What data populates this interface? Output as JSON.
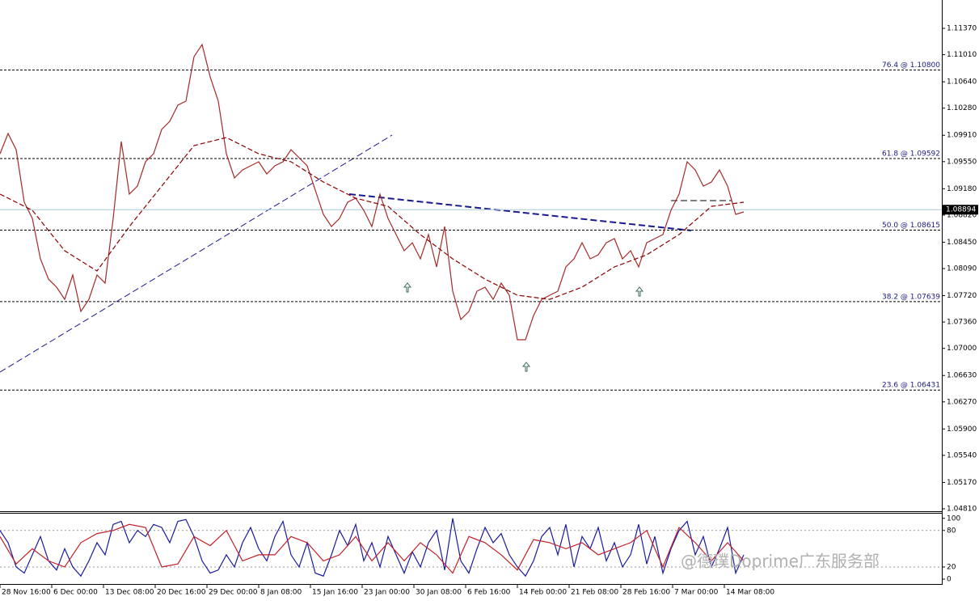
{
  "chart_data": [
    {
      "type": "line",
      "xlim": [
        0,
        116.5
      ],
      "xticks": [
        {
          "value": 0,
          "label": "28 Nov 16:00"
        },
        {
          "value": 6.4,
          "label": "6 Dec 00:00"
        },
        {
          "value": 12.8,
          "label": "13 Dec 08:00"
        },
        {
          "value": 19.2,
          "label": "20 Dec 16:00"
        },
        {
          "value": 25.6,
          "label": "29 Dec 00:00"
        },
        {
          "value": 32,
          "label": "8 Jan 08:00"
        },
        {
          "value": 38.4,
          "label": "15 Jan 16:00"
        },
        {
          "value": 44.8,
          "label": "23 Jan 00:00"
        },
        {
          "value": 51.2,
          "label": "30 Jan 08:00"
        },
        {
          "value": 57.6,
          "label": "6 Feb 16:00"
        },
        {
          "value": 64,
          "label": "14 Feb 00:00"
        },
        {
          "value": 70.4,
          "label": "21 Feb 08:00"
        },
        {
          "value": 76.8,
          "label": "28 Feb 16:00"
        },
        {
          "value": 83.2,
          "label": "7 Mar 00:00"
        },
        {
          "value": 89.6,
          "label": "14 Mar 08:00"
        }
      ],
      "ylim": [
        1.04777,
        1.11757
      ],
      "yticks": [
        {
          "value": 1.1137,
          "label": "1.11370"
        },
        {
          "value": 1.1101,
          "label": "1.11010"
        },
        {
          "value": 1.1064,
          "label": "1.10640"
        },
        {
          "value": 1.1028,
          "label": "1.10280"
        },
        {
          "value": 1.0991,
          "label": "1.09910"
        },
        {
          "value": 1.0955,
          "label": "1.09550"
        },
        {
          "value": 1.0918,
          "label": "1.09180"
        },
        {
          "value": 1.0882,
          "label": "1.08820"
        },
        {
          "value": 1.0845,
          "label": "1.08450"
        },
        {
          "value": 1.0809,
          "label": "1.08090"
        },
        {
          "value": 1.0772,
          "label": "1.07720"
        },
        {
          "value": 1.0736,
          "label": "1.07360"
        },
        {
          "value": 1.07,
          "label": "1.07000"
        },
        {
          "value": 1.0663,
          "label": "1.06630"
        },
        {
          "value": 1.0627,
          "label": "1.06270"
        },
        {
          "value": 1.059,
          "label": "1.05900"
        },
        {
          "value": 1.0554,
          "label": "1.05540"
        },
        {
          "value": 1.0517,
          "label": "1.05170"
        },
        {
          "value": 1.0481,
          "label": "1.04810"
        }
      ],
      "levels": [
        {
          "value": 1.108,
          "label": "76.4 @ 1.10800"
        },
        {
          "value": 1.09592,
          "label": "61.8 @ 1.09592"
        },
        {
          "value": 1.08615,
          "label": "50.0 @ 1.08615"
        },
        {
          "value": 1.07639,
          "label": "38.2 @ 1.07639"
        },
        {
          "value": 1.06431,
          "label": "23.6 @ 1.06431"
        }
      ],
      "last_price": {
        "value": 1.08894,
        "label": "1.08894"
      },
      "series": [
        {
          "color": "#a52a2a",
          "style": "solid",
          "x": [
            0,
            1,
            2,
            3,
            4,
            5,
            6,
            7,
            8,
            9,
            10,
            11,
            12,
            13,
            14,
            15,
            16,
            17,
            18,
            19,
            20,
            21,
            22,
            23,
            24,
            25,
            26,
            27,
            28,
            29,
            30,
            31,
            32,
            33,
            34,
            35,
            36,
            37,
            38,
            39,
            40,
            41,
            42,
            43,
            44,
            45,
            46,
            47,
            48,
            49,
            50,
            51,
            52,
            53,
            54,
            55,
            56,
            57,
            58,
            59,
            60,
            61,
            62,
            63,
            64,
            65,
            66,
            67,
            68,
            69,
            70,
            71,
            72,
            73,
            74,
            75,
            76,
            77,
            78,
            79,
            80,
            81,
            82,
            83,
            84,
            85,
            86,
            87,
            88,
            89,
            90,
            91,
            92
          ],
          "values": [
            1.09658,
            1.09934,
            1.09713,
            1.08996,
            1.08775,
            1.08223,
            1.07946,
            1.07836,
            1.0767,
            1.08002,
            1.07505,
            1.0767,
            1.08002,
            1.07891,
            1.08775,
            1.09824,
            1.09106,
            1.09216,
            1.09548,
            1.09658,
            1.0999,
            1.101,
            1.10321,
            1.10376,
            1.10983,
            1.11149,
            1.10707,
            1.10376,
            1.09658,
            1.09327,
            1.09437,
            1.09493,
            1.09548,
            1.09382,
            1.09493,
            1.09548,
            1.09713,
            1.09603,
            1.09493,
            1.09161,
            1.0883,
            1.08664,
            1.08775,
            1.08996,
            1.09051,
            1.08885,
            1.08664,
            1.09106,
            1.08775,
            1.08554,
            1.08333,
            1.08443,
            1.08223,
            1.08554,
            1.08112,
            1.08664,
            1.07781,
            1.07394,
            1.07505,
            1.07781,
            1.07836,
            1.0767,
            1.07891,
            1.07726,
            1.07118,
            1.07118,
            1.07449,
            1.0767,
            1.07726,
            1.07781,
            1.08112,
            1.08223,
            1.08443,
            1.08223,
            1.08278,
            1.08443,
            1.08499,
            1.08223,
            1.08333,
            1.08112,
            1.08443,
            1.08499,
            1.08554,
            1.08885,
            1.09106,
            1.09548,
            1.09437,
            1.09216,
            1.09272,
            1.09437,
            1.09216,
            1.0883,
            1.08863
          ]
        },
        {
          "color": "#8b0000",
          "style": "dashed",
          "x": [
            0,
            4,
            8,
            12,
            16,
            20,
            24,
            28,
            32,
            36,
            40,
            44,
            48,
            52,
            56,
            60,
            64,
            68,
            72,
            76,
            80,
            84,
            88,
            92
          ],
          "values": [
            1.09106,
            1.08885,
            1.08333,
            1.08057,
            1.08664,
            1.09216,
            1.09769,
            1.09879,
            1.09658,
            1.09548,
            1.09272,
            1.09051,
            1.0894,
            1.08554,
            1.08223,
            1.07946,
            1.07726,
            1.0767,
            1.07836,
            1.08112,
            1.08278,
            1.08554,
            1.0894,
            1.08996
          ]
        }
      ],
      "watermark": "@德璞Doprime广东服务部"
    },
    {
      "type": "line",
      "xlim": [
        0,
        116.5
      ],
      "ylim": [
        -8,
        109
      ],
      "yticks": [
        100,
        80,
        20,
        0
      ],
      "levels": [
        80,
        20
      ],
      "series": [
        {
          "color": "#1a1aa0",
          "style": "solid",
          "x": [
            0,
            1,
            2,
            3,
            4,
            5,
            6,
            7,
            8,
            9,
            10,
            11,
            12,
            13,
            14,
            15,
            16,
            17,
            18,
            19,
            20,
            21,
            22,
            23,
            24,
            25,
            26,
            27,
            28,
            29,
            30,
            31,
            32,
            33,
            34,
            35,
            36,
            37,
            38,
            39,
            40,
            41,
            42,
            43,
            44,
            45,
            46,
            47,
            48,
            49,
            50,
            51,
            52,
            53,
            54,
            55,
            56,
            57,
            58,
            59,
            60,
            61,
            62,
            63,
            64,
            65,
            66,
            67,
            68,
            69,
            70,
            71,
            72,
            73,
            74,
            75,
            76,
            77,
            78,
            79,
            80,
            81,
            82,
            83,
            84,
            85,
            86,
            87,
            88,
            89,
            90,
            91,
            92
          ],
          "values": [
            80,
            60,
            20,
            10,
            40,
            70,
            30,
            15,
            50,
            20,
            5,
            30,
            60,
            40,
            90,
            95,
            60,
            80,
            70,
            90,
            85,
            60,
            95,
            98,
            70,
            30,
            10,
            15,
            40,
            20,
            60,
            85,
            50,
            30,
            70,
            95,
            40,
            20,
            60,
            10,
            5,
            40,
            80,
            55,
            90,
            30,
            60,
            20,
            70,
            40,
            10,
            45,
            20,
            60,
            80,
            15,
            100,
            30,
            10,
            50,
            85,
            60,
            75,
            40,
            20,
            5,
            30,
            70,
            85,
            40,
            90,
            20,
            70,
            50,
            85,
            30,
            60,
            20,
            40,
            90,
            25,
            70,
            10,
            50,
            80,
            95,
            40,
            70,
            20,
            50,
            85,
            10,
            40
          ]
        },
        {
          "color": "#c0202a",
          "style": "solid",
          "x": [
            0,
            2,
            4,
            6,
            8,
            10,
            12,
            14,
            16,
            18,
            20,
            22,
            24,
            26,
            28,
            30,
            32,
            34,
            36,
            38,
            40,
            42,
            44,
            46,
            48,
            50,
            52,
            54,
            56,
            58,
            60,
            62,
            64,
            66,
            68,
            70,
            72,
            74,
            76,
            78,
            80,
            82,
            84,
            86,
            88,
            90,
            92
          ],
          "values": [
            70,
            25,
            50,
            30,
            20,
            60,
            75,
            80,
            90,
            85,
            20,
            25,
            70,
            55,
            80,
            30,
            40,
            40,
            70,
            60,
            30,
            40,
            70,
            30,
            60,
            30,
            60,
            40,
            10,
            70,
            60,
            40,
            15,
            65,
            60,
            50,
            60,
            40,
            50,
            60,
            80,
            20,
            85,
            60,
            30,
            60,
            30
          ]
        }
      ]
    }
  ]
}
